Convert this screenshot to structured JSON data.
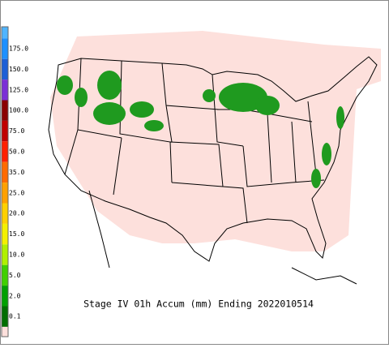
{
  "title": "Stage IV 01h Accum (mm) Ending 2022010514",
  "legend": {
    "levels": [
      {
        "label": "175.0",
        "color": "#1e90ff"
      },
      {
        "label": "150.0",
        "color": "#1c5fd6"
      },
      {
        "label": "125.0",
        "color": "#7b2fd6"
      },
      {
        "label": "100.0",
        "color": "#8a0000"
      },
      {
        "label": "75.0",
        "color": "#c00000"
      },
      {
        "label": "50.0",
        "color": "#ff2000"
      },
      {
        "label": "35.0",
        "color": "#ff6a00"
      },
      {
        "label": "25.0",
        "color": "#ffa000"
      },
      {
        "label": "20.0",
        "color": "#ffd000"
      },
      {
        "label": "15.0",
        "color": "#f4f000"
      },
      {
        "label": "10.0",
        "color": "#b0f000"
      },
      {
        "label": "5.0",
        "color": "#40d000"
      },
      {
        "label": "2.0",
        "color": "#00a000"
      },
      {
        "label": "0.1",
        "color": "#006e00"
      }
    ],
    "top_color": "#4fb4ff",
    "base_color": "#fde0dc"
  }
}
